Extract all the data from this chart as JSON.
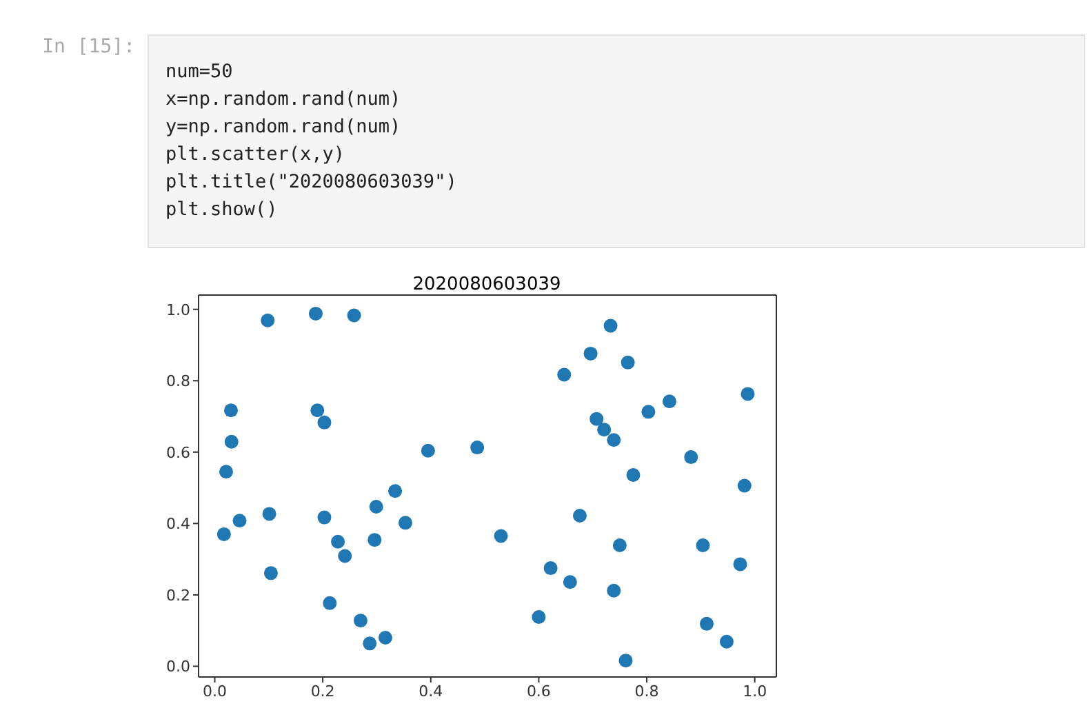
{
  "chart_data": {
    "type": "scatter",
    "title": "2020080603039",
    "annotations": [
      "In [15]:",
      "num=50",
      "x=np.random.rand(num)",
      "y=np.random.rand(num)",
      "plt.scatter(x,y)",
      "plt.title(\"2020080603039\")",
      "plt.show()"
    ],
    "x": [
      0.098,
      0.187,
      0.258,
      0.03,
      0.031,
      0.021,
      0.017,
      0.046,
      0.101,
      0.104,
      0.19,
      0.203,
      0.203,
      0.228,
      0.241,
      0.213,
      0.27,
      0.287,
      0.316,
      0.296,
      0.299,
      0.334,
      0.353,
      0.395,
      0.486,
      0.733,
      0.696,
      0.765,
      0.647,
      0.987,
      0.842,
      0.803,
      0.707,
      0.721,
      0.739,
      0.882,
      0.775,
      0.981,
      0.676,
      0.53,
      0.75,
      0.904,
      0.973,
      0.622,
      0.658,
      0.739,
      0.6,
      0.911,
      0.948,
      0.761
    ],
    "series": [
      {
        "color": "#1f77b4",
        "values": [
          0.969,
          0.988,
          0.983,
          0.717,
          0.629,
          0.545,
          0.37,
          0.408,
          0.427,
          0.261,
          0.717,
          0.683,
          0.417,
          0.349,
          0.309,
          0.177,
          0.128,
          0.064,
          0.08,
          0.354,
          0.447,
          0.491,
          0.402,
          0.604,
          0.613,
          0.954,
          0.876,
          0.851,
          0.817,
          0.763,
          0.742,
          0.713,
          0.693,
          0.663,
          0.634,
          0.586,
          0.536,
          0.506,
          0.422,
          0.365,
          0.339,
          0.339,
          0.286,
          0.275,
          0.236,
          0.212,
          0.138,
          0.119,
          0.069,
          0.016
        ]
      }
    ],
    "xlim": [
      -0.03,
      1.04
    ],
    "ylim": [
      -0.03,
      1.04
    ],
    "xticks": [
      {
        "value": 0,
        "label": "0.0"
      },
      0.2,
      0.4,
      0.6,
      0.8,
      {
        "value": 1,
        "label": "1.0"
      }
    ],
    "yticks": [
      {
        "value": 0,
        "label": "0.0"
      },
      0.2,
      0.4,
      0.6,
      0.8,
      {
        "value": 1,
        "label": "1.0"
      }
    ],
    "marker": "circle",
    "grid": false,
    "legend": false
  }
}
